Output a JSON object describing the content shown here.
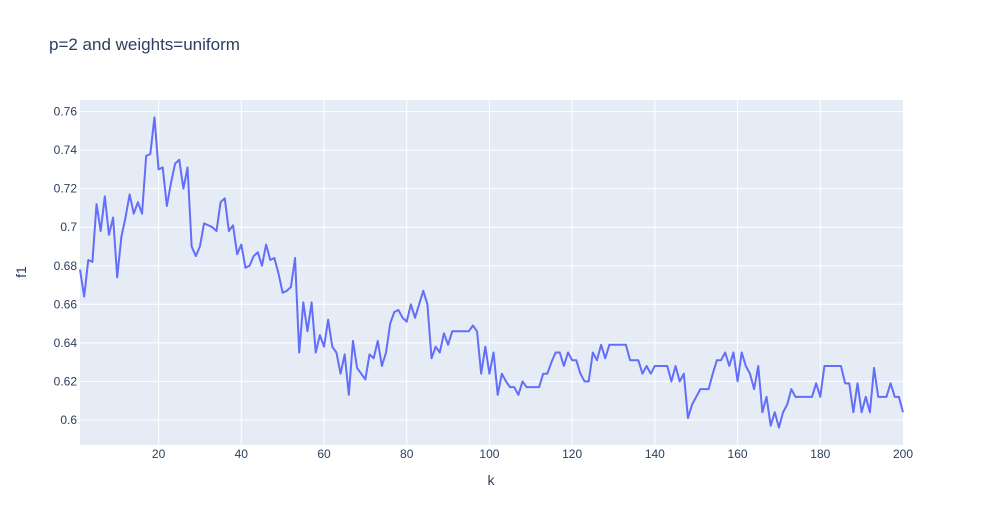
{
  "chart_data": {
    "type": "line",
    "title": "p=2 and weights=uniform",
    "xlabel": "k",
    "ylabel": "f1",
    "xlim": [
      1,
      200
    ],
    "ylim": [
      0.587,
      0.766
    ],
    "grid": true,
    "x_ticks": [
      20,
      40,
      60,
      80,
      100,
      120,
      140,
      160,
      180,
      200
    ],
    "x_tick_labels": [
      "20",
      "40",
      "60",
      "80",
      "100",
      "120",
      "140",
      "160",
      "180",
      "200"
    ],
    "y_ticks": [
      0.6,
      0.62,
      0.64,
      0.66,
      0.68,
      0.7,
      0.72,
      0.74,
      0.76
    ],
    "y_tick_labels": [
      "0.6",
      "0.62",
      "0.64",
      "0.66",
      "0.68",
      "0.7",
      "0.72",
      "0.74",
      "0.76"
    ],
    "colors": {
      "line": "#636efa",
      "plot_bg": "#e5ecf6",
      "grid": "#ffffff",
      "text": "#2a3f5f"
    },
    "series": [
      {
        "x": [
          1,
          2,
          3,
          4,
          5,
          6,
          7,
          8,
          9,
          10,
          11,
          12,
          13,
          14,
          15,
          16,
          17,
          18,
          19,
          20,
          21,
          22,
          23,
          24,
          25,
          26,
          27,
          28,
          29,
          30,
          31,
          32,
          33,
          34,
          35,
          36,
          37,
          38,
          39,
          40,
          41,
          42,
          43,
          44,
          45,
          46,
          47,
          48,
          49,
          50,
          51,
          52,
          53,
          54,
          55,
          56,
          57,
          58,
          59,
          60,
          61,
          62,
          63,
          64,
          65,
          66,
          67,
          68,
          69,
          70,
          71,
          72,
          73,
          74,
          75,
          76,
          77,
          78,
          79,
          80,
          81,
          82,
          83,
          84,
          85,
          86,
          87,
          88,
          89,
          90,
          91,
          92,
          93,
          94,
          95,
          96,
          97,
          98,
          99,
          100,
          101,
          102,
          103,
          104,
          105,
          106,
          107,
          108,
          109,
          110,
          111,
          112,
          113,
          114,
          115,
          116,
          117,
          118,
          119,
          120,
          121,
          122,
          123,
          124,
          125,
          126,
          127,
          128,
          129,
          130,
          131,
          132,
          133,
          134,
          135,
          136,
          137,
          138,
          139,
          140,
          141,
          142,
          143,
          144,
          145,
          146,
          147,
          148,
          149,
          150,
          151,
          152,
          153,
          154,
          155,
          156,
          157,
          158,
          159,
          160,
          161,
          162,
          163,
          164,
          165,
          166,
          167,
          168,
          169,
          170,
          171,
          172,
          173,
          174,
          175,
          176,
          177,
          178,
          179,
          180,
          181,
          182,
          183,
          184,
          185,
          186,
          187,
          188,
          189,
          190,
          191,
          192,
          193,
          194,
          195,
          196,
          197,
          198,
          199,
          200
        ],
        "y": [
          0.678,
          0.664,
          0.683,
          0.682,
          0.712,
          0.698,
          0.716,
          0.696,
          0.705,
          0.674,
          0.695,
          0.705,
          0.717,
          0.707,
          0.713,
          0.707,
          0.737,
          0.738,
          0.757,
          0.73,
          0.731,
          0.711,
          0.723,
          0.733,
          0.735,
          0.72,
          0.731,
          0.69,
          0.685,
          0.69,
          0.702,
          0.701,
          0.7,
          0.698,
          0.713,
          0.715,
          0.698,
          0.701,
          0.686,
          0.691,
          0.679,
          0.68,
          0.685,
          0.687,
          0.68,
          0.691,
          0.683,
          0.684,
          0.676,
          0.666,
          0.667,
          0.669,
          0.684,
          0.635,
          0.661,
          0.646,
          0.661,
          0.635,
          0.644,
          0.638,
          0.652,
          0.638,
          0.635,
          0.624,
          0.634,
          0.613,
          0.641,
          0.627,
          0.624,
          0.621,
          0.634,
          0.632,
          0.641,
          0.628,
          0.635,
          0.65,
          0.656,
          0.657,
          0.653,
          0.651,
          0.66,
          0.653,
          0.66,
          0.667,
          0.66,
          0.632,
          0.638,
          0.635,
          0.645,
          0.639,
          0.646,
          0.646,
          0.646,
          0.646,
          0.646,
          0.649,
          0.646,
          0.624,
          0.638,
          0.624,
          0.635,
          0.613,
          0.624,
          0.62,
          0.617,
          0.617,
          0.613,
          0.62,
          0.617,
          0.617,
          0.617,
          0.617,
          0.624,
          0.624,
          0.63,
          0.635,
          0.635,
          0.628,
          0.635,
          0.631,
          0.631,
          0.624,
          0.62,
          0.62,
          0.635,
          0.631,
          0.639,
          0.632,
          0.639,
          0.639,
          0.639,
          0.639,
          0.639,
          0.631,
          0.631,
          0.631,
          0.624,
          0.628,
          0.624,
          0.628,
          0.628,
          0.628,
          0.628,
          0.62,
          0.628,
          0.62,
          0.624,
          0.601,
          0.608,
          0.612,
          0.616,
          0.616,
          0.616,
          0.624,
          0.631,
          0.631,
          0.635,
          0.628,
          0.635,
          0.62,
          0.635,
          0.628,
          0.624,
          0.616,
          0.628,
          0.604,
          0.612,
          0.597,
          0.604,
          0.596,
          0.604,
          0.608,
          0.616,
          0.612,
          0.612,
          0.612,
          0.612,
          0.612,
          0.619,
          0.612,
          0.628,
          0.628,
          0.628,
          0.628,
          0.628,
          0.619,
          0.619,
          0.604,
          0.619,
          0.604,
          0.612,
          0.604,
          0.627,
          0.612,
          0.612,
          0.612,
          0.619,
          0.612,
          0.612,
          0.604
        ]
      }
    ]
  }
}
